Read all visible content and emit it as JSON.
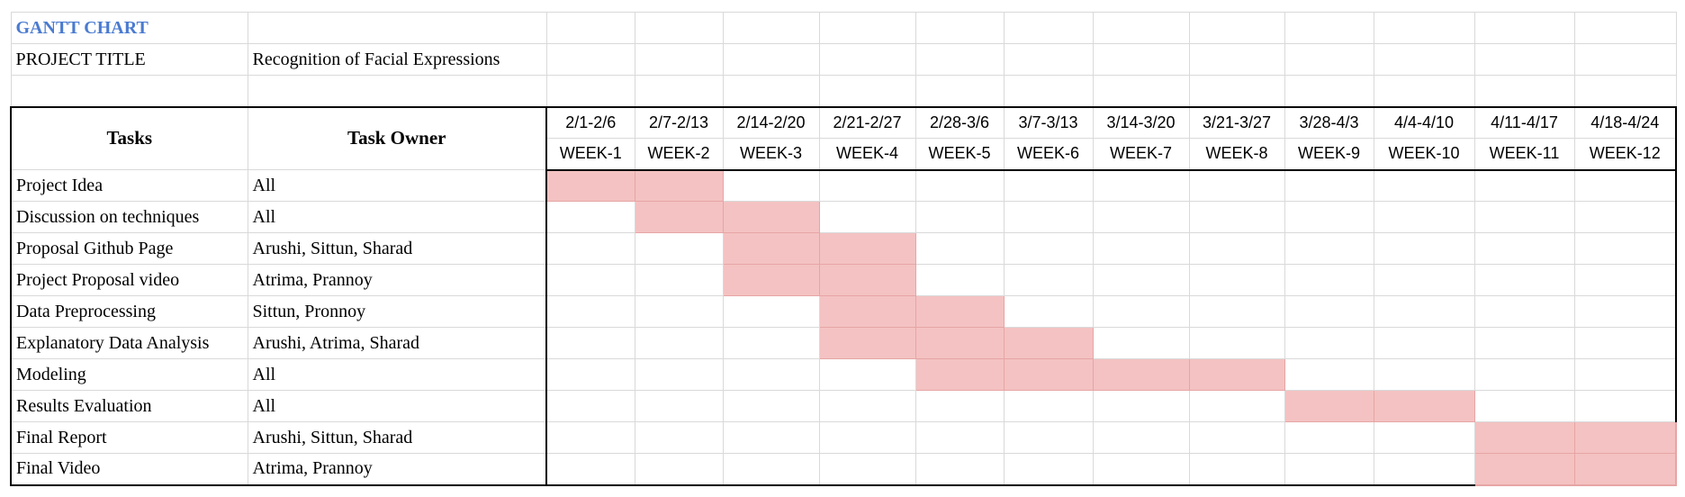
{
  "sheet": {
    "title": "GANTT CHART",
    "project_title_label": "PROJECT TITLE",
    "project_title_value": "Recognition of Facial Expressions"
  },
  "header": {
    "tasks_label": "Tasks",
    "owner_label": "Task Owner",
    "weeks": [
      {
        "range": "2/1-2/6",
        "label": "WEEK-1"
      },
      {
        "range": "2/7-2/13",
        "label": "WEEK-2"
      },
      {
        "range": "2/14-2/20",
        "label": "WEEK-3"
      },
      {
        "range": "2/21-2/27",
        "label": "WEEK-4"
      },
      {
        "range": "2/28-3/6",
        "label": "WEEK-5"
      },
      {
        "range": "3/7-3/13",
        "label": "WEEK-6"
      },
      {
        "range": "3/14-3/20",
        "label": "WEEK-7"
      },
      {
        "range": "3/21-3/27",
        "label": "WEEK-8"
      },
      {
        "range": "3/28-4/3",
        "label": "WEEK-9"
      },
      {
        "range": "4/4-4/10",
        "label": "WEEK-10"
      },
      {
        "range": "4/11-4/17",
        "label": "WEEK-11"
      },
      {
        "range": "4/18-4/24",
        "label": "WEEK-12"
      }
    ]
  },
  "tasks": [
    {
      "name": "Project Idea",
      "owner": "All",
      "weeks": [
        1,
        2
      ]
    },
    {
      "name": "Discussion on techniques",
      "owner": "All",
      "weeks": [
        2,
        3
      ]
    },
    {
      "name": "Proposal Github Page",
      "owner": "Arushi, Sittun, Sharad",
      "weeks": [
        3,
        4
      ]
    },
    {
      "name": "Project Proposal video",
      "owner": "Atrima, Prannoy",
      "weeks": [
        3,
        4
      ]
    },
    {
      "name": "Data Preprocessing",
      "owner": "Sittun, Pronnoy",
      "weeks": [
        4,
        5
      ]
    },
    {
      "name": "Explanatory Data Analysis",
      "owner": "Arushi, Atrima, Sharad",
      "weeks": [
        4,
        5,
        6
      ]
    },
    {
      "name": "Modeling",
      "owner": "All",
      "weeks": [
        5,
        6,
        7,
        8
      ]
    },
    {
      "name": "Results Evaluation",
      "owner": "All",
      "weeks": [
        9,
        10
      ]
    },
    {
      "name": "Final Report",
      "owner": "Arushi, Sittun, Sharad",
      "weeks": [
        11,
        12
      ]
    },
    {
      "name": "Final Video",
      "owner": "Atrima, Prannoy",
      "weeks": [
        11,
        12
      ]
    }
  ],
  "colors": {
    "bar_fill": "#f4c2c2",
    "title_text": "#4a7bd0",
    "gridline": "#d9d9d9"
  }
}
